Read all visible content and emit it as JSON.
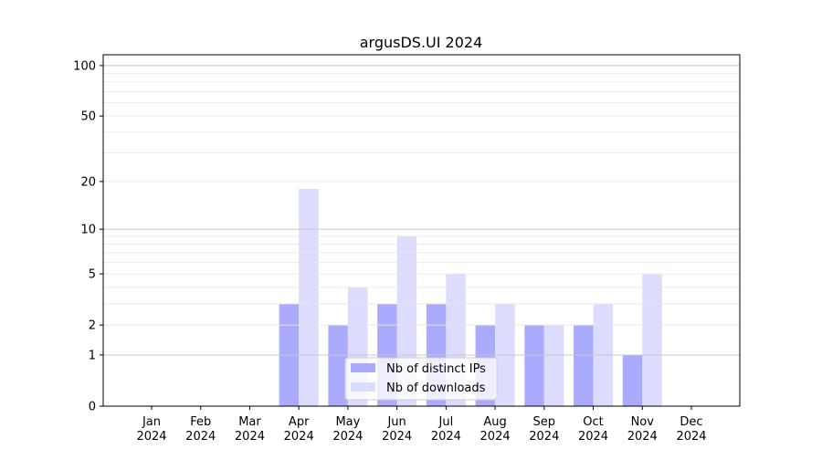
{
  "chart_data": {
    "type": "bar",
    "title": "argusDS.UI 2024",
    "xlabel": "",
    "ylabel": "",
    "yscale": "symlog",
    "ylim": [
      0,
      116
    ],
    "yticks": [
      0,
      1,
      2,
      5,
      10,
      20,
      50,
      100
    ],
    "grid": true,
    "legend_placement": "lower center",
    "categories": [
      "Jan\n2024",
      "Feb\n2024",
      "Mar\n2024",
      "Apr\n2024",
      "May\n2024",
      "Jun\n2024",
      "Jul\n2024",
      "Aug\n2024",
      "Sep\n2024",
      "Oct\n2024",
      "Nov\n2024",
      "Dec\n2024"
    ],
    "series": [
      {
        "name": "Nb of distinct IPs",
        "color": "#aaaaff",
        "values": [
          0,
          0,
          0,
          3,
          2,
          3,
          3,
          2,
          2,
          2,
          1,
          0
        ]
      },
      {
        "name": "Nb of downloads",
        "color": "#dcdcff",
        "values": [
          0,
          0,
          0,
          18,
          4,
          9,
          5,
          3,
          2,
          3,
          5,
          0
        ]
      }
    ]
  }
}
